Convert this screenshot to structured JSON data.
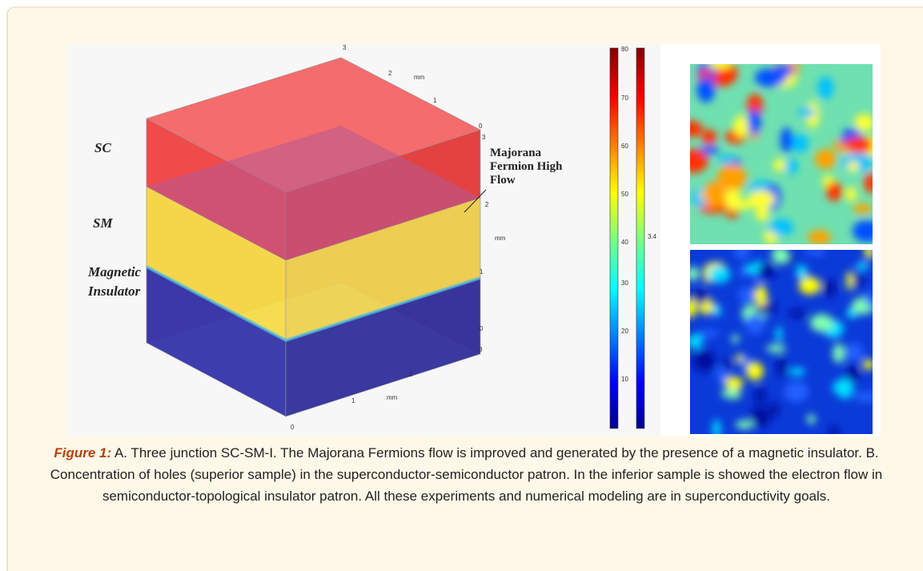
{
  "figure": {
    "panel_a": {
      "layer_labels": [
        "SC",
        "SM",
        "Magnetic Insulator"
      ],
      "annotation": "Majorana Fermion High Flow",
      "top_axis": {
        "ticks": [
          "3",
          "2",
          "1",
          "0"
        ],
        "unit": "mm"
      },
      "right_axis": {
        "ticks": [
          "3",
          "2",
          "1",
          "0"
        ],
        "unit": "mm"
      },
      "bottom_axis": {
        "ticks": [
          "3",
          "2",
          "1",
          "0"
        ],
        "unit": "mm"
      }
    },
    "colorbar_1": {
      "ticks": [
        "80",
        "70",
        "60",
        "50",
        "40",
        "30",
        "20",
        "10"
      ]
    },
    "colorbar_2": {
      "ticks": [
        "3.4"
      ]
    }
  },
  "caption": {
    "label": "Figure 1:",
    "text": "A. Three junction SC-SM-I. The Majorana Fermions flow is improved and generated by the presence of a magnetic insulator. B. Concentration of holes (superior sample) in the superconductor-semiconductor patron. In the inferior sample is showed the electron flow in semiconductor-topological insulator patron. All these experiments and numerical modeling are in superconductivity goals."
  }
}
